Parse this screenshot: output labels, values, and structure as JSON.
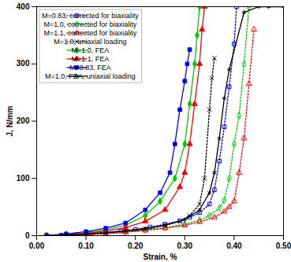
{
  "chart_data": {
    "type": "line",
    "x_label": "Strain, %",
    "y_label": "J, N/mm",
    "xlim": [
      0,
      0.5
    ],
    "ylim": [
      0,
      400
    ],
    "xticks": [
      {
        "value": 0,
        "label": "0.00"
      },
      {
        "value": 0.1,
        "label": "0.10"
      },
      {
        "value": 0.2,
        "label": "0.20"
      },
      {
        "value": 0.3,
        "label": "0.30"
      },
      {
        "value": 0.4,
        "label": "0.40"
      },
      {
        "value": 0.5,
        "label": "0.50"
      }
    ],
    "yticks": [
      0,
      100,
      200,
      300,
      400
    ],
    "grid": false,
    "legend": "top-left",
    "series": [
      {
        "name": "M=0.83, corrected for biaxiality",
        "color": "#0000ff",
        "marker": "square-open",
        "line_style": "dotted",
        "x": [
          0.02,
          0.05,
          0.08,
          0.11,
          0.14,
          0.17,
          0.2,
          0.23,
          0.26,
          0.29,
          0.31,
          0.33,
          0.35,
          0.36,
          0.37,
          0.38,
          0.39,
          0.4,
          0.405
        ],
        "values": [
          0,
          1,
          2,
          4,
          6,
          8,
          11,
          15,
          20,
          26,
          32,
          40,
          55,
          80,
          130,
          190,
          260,
          335,
          400
        ]
      },
      {
        "name": "M=1.0, corrected for biaxiality",
        "color": "#00cc00",
        "marker": "diamond-open",
        "line_style": "dotted",
        "x": [
          0.02,
          0.06,
          0.1,
          0.14,
          0.18,
          0.22,
          0.26,
          0.3,
          0.33,
          0.35,
          0.37,
          0.38,
          0.39,
          0.4,
          0.41,
          0.42,
          0.43
        ],
        "values": [
          0,
          1,
          2,
          4,
          7,
          10,
          14,
          20,
          27,
          35,
          48,
          62,
          100,
          160,
          210,
          300,
          400
        ]
      },
      {
        "name": "M=1.1, corrected for biaxiality",
        "color": "#ff0000",
        "marker": "triangle-open",
        "line_style": "dotted",
        "x": [
          0.02,
          0.06,
          0.1,
          0.14,
          0.18,
          0.22,
          0.26,
          0.3,
          0.33,
          0.36,
          0.38,
          0.39,
          0.4,
          0.41,
          0.42,
          0.43,
          0.44
        ],
        "values": [
          0,
          1,
          2,
          3,
          6,
          9,
          13,
          18,
          24,
          32,
          42,
          50,
          60,
          110,
          170,
          265,
          360
        ]
      },
      {
        "name": "M=1.0, uniaxial loading",
        "color": "#000000",
        "marker": "x",
        "line_style": "dotted",
        "x": [
          0.02,
          0.06,
          0.1,
          0.14,
          0.18,
          0.22,
          0.26,
          0.29,
          0.31,
          0.33,
          0.34,
          0.35,
          0.355,
          0.36
        ],
        "values": [
          0,
          1,
          3,
          5,
          8,
          12,
          18,
          25,
          35,
          55,
          100,
          220,
          275,
          310
        ]
      },
      {
        "name": "M=1.0, FEA",
        "color": "#00cc00",
        "marker": "diamond",
        "line_style": "solid",
        "x": [
          0.02,
          0.06,
          0.1,
          0.14,
          0.18,
          0.22,
          0.25,
          0.28,
          0.3,
          0.31,
          0.32,
          0.325,
          0.33
        ],
        "values": [
          0,
          2,
          5,
          10,
          18,
          35,
          60,
          100,
          160,
          230,
          300,
          350,
          400
        ]
      },
      {
        "name": "M=1.1, FEA",
        "color": "#ff0000",
        "marker": "triangle",
        "line_style": "solid",
        "x": [
          0.02,
          0.06,
          0.1,
          0.14,
          0.18,
          0.22,
          0.26,
          0.29,
          0.3,
          0.31,
          0.32,
          0.33,
          0.335,
          0.34
        ],
        "values": [
          0,
          2,
          4,
          8,
          14,
          25,
          45,
          85,
          110,
          160,
          230,
          300,
          360,
          400
        ]
      },
      {
        "name": "M=0.83, FEA",
        "color": "#0000ff",
        "marker": "square",
        "line_style": "solid",
        "x": [
          0.02,
          0.06,
          0.1,
          0.14,
          0.18,
          0.22,
          0.25,
          0.27,
          0.28,
          0.29,
          0.3,
          0.305,
          0.31
        ],
        "values": [
          0,
          3,
          7,
          13,
          22,
          45,
          75,
          110,
          160,
          220,
          270,
          300,
          325
        ]
      },
      {
        "name": "M=1.0, FEA, uniaxial loading",
        "color": "#000000",
        "marker": "asterisk",
        "line_style": "solid",
        "x": [
          0.02,
          0.06,
          0.1,
          0.14,
          0.18,
          0.22,
          0.26,
          0.3,
          0.33,
          0.35,
          0.36,
          0.37,
          0.38,
          0.39,
          0.42,
          0.45,
          0.47,
          0.5
        ],
        "values": [
          0,
          1,
          3,
          5,
          8,
          12,
          18,
          28,
          45,
          75,
          110,
          170,
          240,
          290,
          390,
          400,
          400,
          400
        ]
      }
    ]
  }
}
